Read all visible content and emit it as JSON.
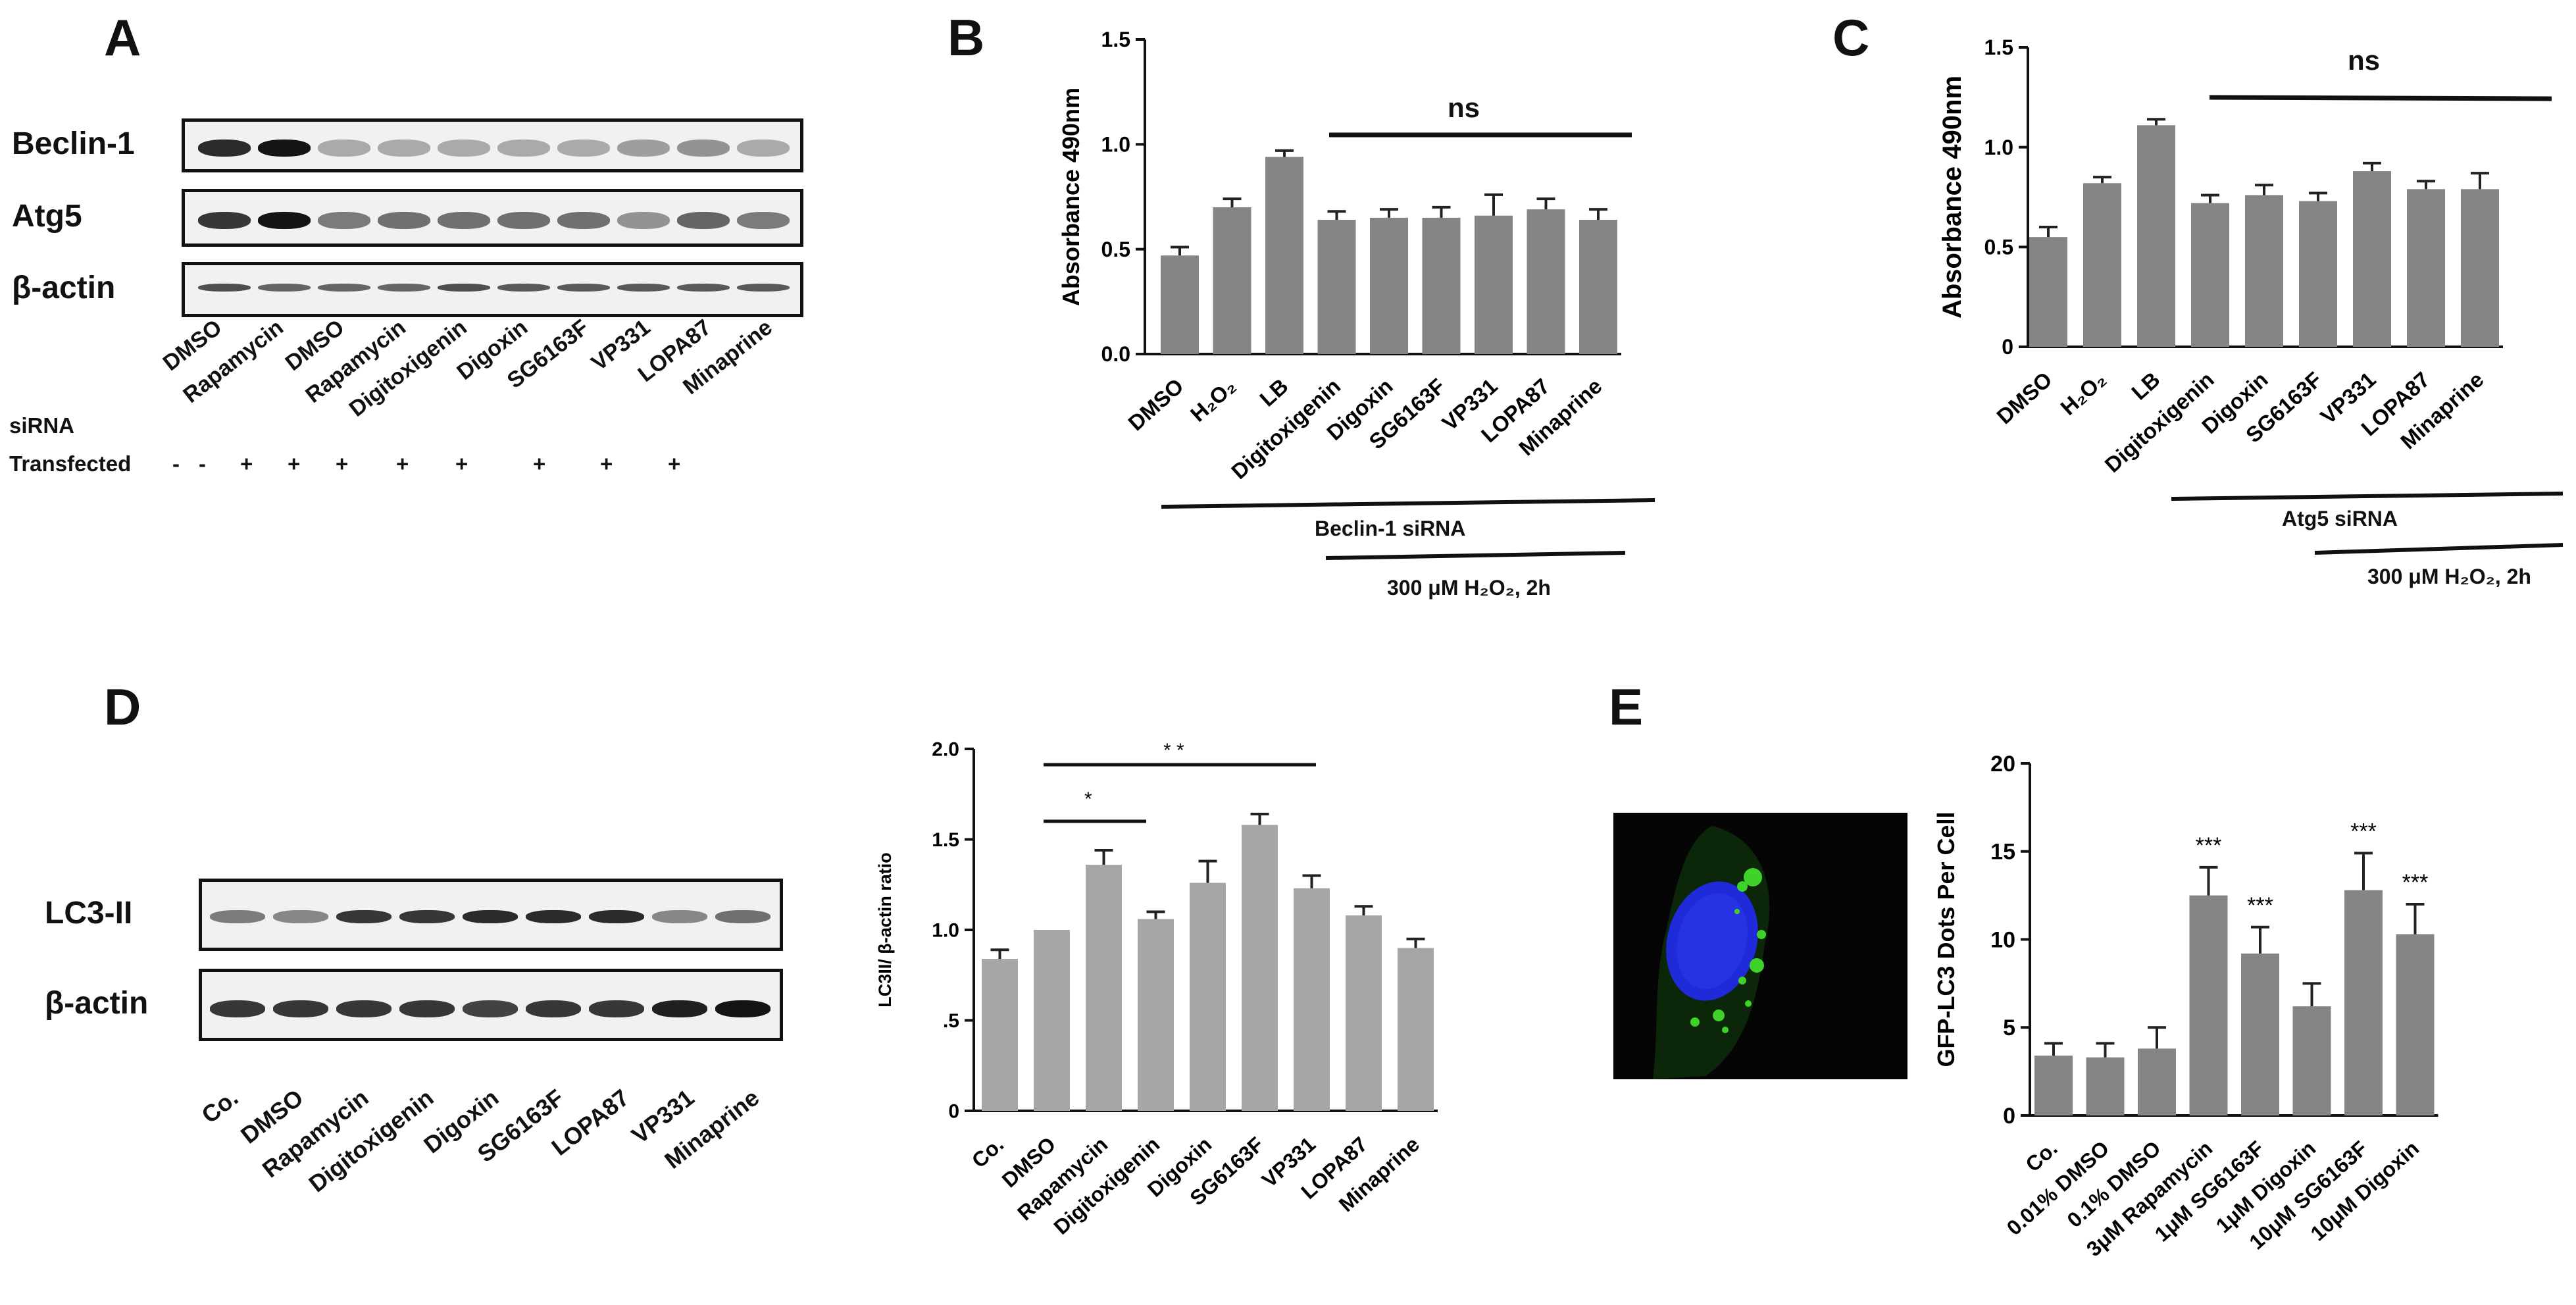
{
  "panels": {
    "a": "A",
    "b": "B",
    "c": "C",
    "d": "D",
    "e": "E"
  },
  "blot_a": {
    "rows": [
      "Beclin-1",
      "Atg5",
      "β-actin"
    ],
    "lanes": [
      "DMSO",
      "Rapamycin",
      "DMSO",
      "Rapamycin",
      "Digitoxigenin",
      "Digoxin",
      "SG6163F",
      "VP331",
      "LOPA87",
      "Minaprine"
    ],
    "sirna_label": "siRNA",
    "transfected_label": "Transfected",
    "transfected_marks": [
      "-",
      "-",
      "+",
      "+",
      "+",
      "+",
      "+",
      "+",
      "+",
      "+"
    ]
  },
  "blot_d": {
    "rows": [
      "LC3-II",
      "β-actin"
    ],
    "lanes": [
      "Co.",
      "DMSO",
      "Rapamycin",
      "Digitoxigenin",
      "Digoxin",
      "SG6163F",
      "LOPA87",
      "VP331",
      "Minaprine"
    ]
  },
  "annotations": {
    "b_ns": "ns",
    "b_group1": "Beclin-1  siRNA",
    "b_group2": "300 μM H₂O₂, 2h",
    "c_ns": "ns",
    "c_group1": "Atg5  siRNA",
    "c_group2": "300 μM H₂O₂, 2h",
    "d_sig1": "*",
    "d_sig2": "* *",
    "e_stars": "***"
  },
  "colors": {
    "bar_dark": "#858585",
    "bar_light": "#a6a6a6",
    "nucleus": "#1f2bd8",
    "gfp": "#3fd22b"
  },
  "chart_data": [
    {
      "id": "B",
      "type": "bar",
      "ylabel": "Absorbance 490nm",
      "ylim": [
        0,
        1.5
      ],
      "yticks": [
        "0.0",
        "0.5",
        "1.0",
        "1.5"
      ],
      "categories": [
        "DMSO",
        "H₂O₂",
        "LB",
        "Digitoxigenin",
        "Digoxin",
        "SG6163F",
        "VP331",
        "LOPA87",
        "Minaprine"
      ],
      "values": [
        0.47,
        0.7,
        0.94,
        0.64,
        0.65,
        0.65,
        0.66,
        0.69,
        0.64
      ],
      "errors": [
        0.04,
        0.04,
        0.03,
        0.04,
        0.04,
        0.05,
        0.1,
        0.05,
        0.05
      ]
    },
    {
      "id": "C",
      "type": "bar",
      "ylabel": "Absorbance 490nm",
      "ylim": [
        0,
        1.5
      ],
      "yticks": [
        "0",
        "0.5",
        "1.0",
        "1.5"
      ],
      "categories": [
        "DMSO",
        "H₂O₂",
        "LB",
        "Digitoxigenin",
        "Digoxin",
        "SG6163F",
        "VP331",
        "LOPA87",
        "Minaprine"
      ],
      "values": [
        0.55,
        0.82,
        1.11,
        0.72,
        0.76,
        0.73,
        0.88,
        0.79,
        0.79
      ],
      "errors": [
        0.05,
        0.03,
        0.03,
        0.04,
        0.05,
        0.04,
        0.04,
        0.04,
        0.08
      ]
    },
    {
      "id": "D",
      "type": "bar",
      "ylabel": "LC3II/ β-actin ratio",
      "ylim": [
        0,
        2.0
      ],
      "yticks": [
        "0",
        ".5",
        "1.0",
        "1.5",
        "2.0"
      ],
      "categories": [
        "Co.",
        "DMSO",
        "Rapamycin",
        "Digitoxigenin",
        "Digoxin",
        "SG6163F",
        "VP331",
        "LOPA87",
        "Minaprine"
      ],
      "values": [
        0.84,
        1.0,
        1.36,
        1.06,
        1.26,
        1.58,
        1.23,
        1.08,
        0.9
      ],
      "errors": [
        0.05,
        0.0,
        0.08,
        0.04,
        0.12,
        0.06,
        0.07,
        0.05,
        0.05
      ]
    },
    {
      "id": "E",
      "type": "bar",
      "ylabel": "GFP-LC3 Dots Per Cell",
      "ylim": [
        0,
        20
      ],
      "yticks": [
        "0",
        "5",
        "10",
        "15",
        "20"
      ],
      "categories": [
        "Co.",
        "0.01% DMSO",
        "0.1% DMSO",
        "3μM Rapamycin",
        "1μM SG6163F",
        "1μM Digoxin",
        "10μM SG6163F",
        "10μM Digoxin"
      ],
      "values": [
        3.4,
        3.3,
        3.8,
        12.5,
        9.2,
        6.2,
        12.8,
        10.3
      ],
      "errors": [
        0.7,
        0.8,
        1.2,
        1.6,
        1.5,
        1.3,
        2.1,
        1.7
      ]
    }
  ]
}
